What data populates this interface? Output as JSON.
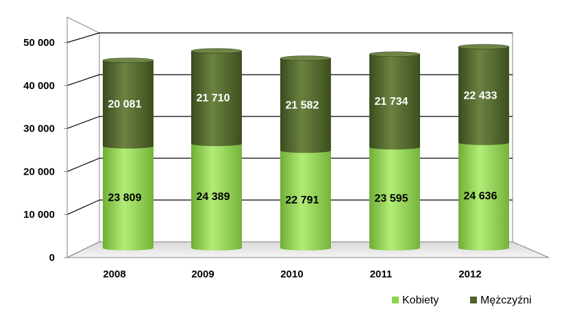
{
  "chart_data": {
    "type": "bar",
    "stacked": true,
    "style": "3d-cylinder",
    "categories": [
      "2008",
      "2009",
      "2010",
      "2011",
      "2012"
    ],
    "series": [
      {
        "name": "Kobiety",
        "values": [
          23809,
          24389,
          22791,
          23595,
          24636
        ],
        "labels": [
          "23 809",
          "24 389",
          "22 791",
          "23 595",
          "24 636"
        ],
        "color": "#8fd14f",
        "label_color": "#000000"
      },
      {
        "name": "Mężczyźni",
        "values": [
          20081,
          21710,
          21582,
          21734,
          22433
        ],
        "labels": [
          "20 081",
          "21 710",
          "21 582",
          "21 734",
          "22 433"
        ],
        "color": "#4f6228",
        "label_color": "#ffffff"
      }
    ],
    "yticks": [
      0,
      10000,
      20000,
      30000,
      40000,
      50000
    ],
    "ytick_labels": [
      "0",
      "10 000",
      "20 000",
      "30 000",
      "40 000",
      "50 000"
    ],
    "ylim": [
      0,
      50000
    ],
    "grid": true,
    "legend": "bottom-right",
    "title": "",
    "xlabel": "",
    "ylabel": ""
  }
}
